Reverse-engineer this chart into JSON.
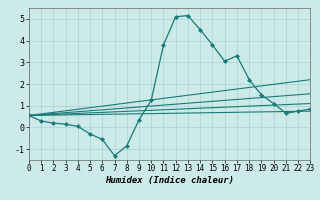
{
  "xlabel": "Humidex (Indice chaleur)",
  "xlim": [
    0,
    23
  ],
  "ylim": [
    -1.5,
    5.5
  ],
  "yticks": [
    -1,
    0,
    1,
    2,
    3,
    4,
    5
  ],
  "xticks": [
    0,
    1,
    2,
    3,
    4,
    5,
    6,
    7,
    8,
    9,
    10,
    11,
    12,
    13,
    14,
    15,
    16,
    17,
    18,
    19,
    20,
    21,
    22,
    23
  ],
  "bg_color": "#cceae8",
  "grid_color": "#afd8d5",
  "line_color": "#1a7a78",
  "lines": [
    {
      "x": [
        0,
        1,
        2,
        3,
        4,
        5,
        6,
        7,
        8,
        9,
        10,
        11,
        12,
        13,
        14,
        15,
        16,
        17,
        18,
        19,
        20,
        21,
        22,
        23
      ],
      "y": [
        0.55,
        0.3,
        0.2,
        0.15,
        0.05,
        -0.3,
        -0.55,
        -1.3,
        -0.85,
        0.35,
        1.25,
        3.8,
        5.1,
        5.15,
        4.5,
        3.8,
        3.05,
        3.3,
        2.2,
        1.5,
        1.1,
        0.65,
        0.75,
        0.85
      ],
      "marker": true
    },
    {
      "x": [
        0,
        23
      ],
      "y": [
        0.55,
        2.2
      ],
      "marker": false
    },
    {
      "x": [
        0,
        23
      ],
      "y": [
        0.55,
        1.55
      ],
      "marker": false
    },
    {
      "x": [
        0,
        23
      ],
      "y": [
        0.55,
        1.1
      ],
      "marker": false
    },
    {
      "x": [
        0,
        23
      ],
      "y": [
        0.55,
        0.75
      ],
      "marker": false
    }
  ]
}
